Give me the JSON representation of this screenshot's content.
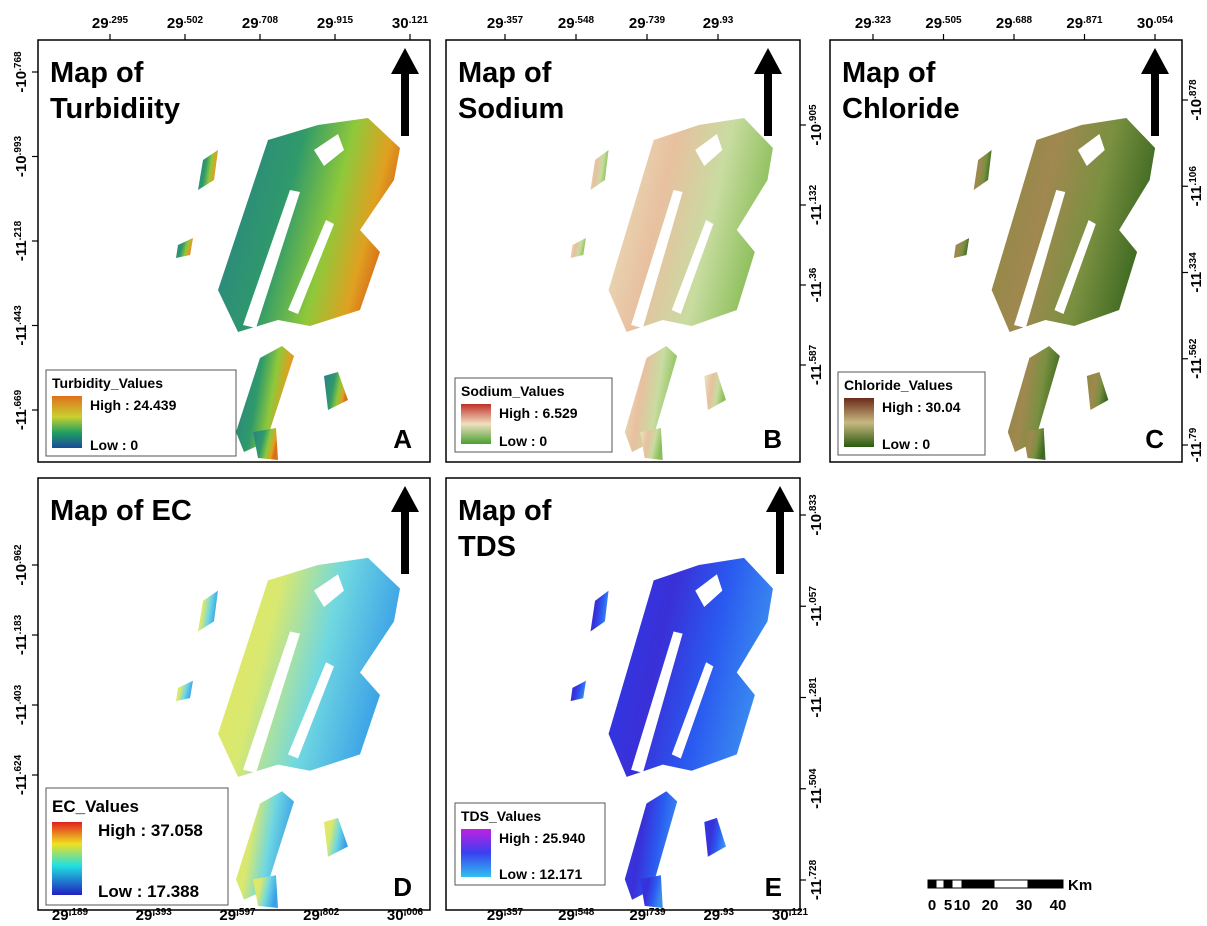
{
  "panels": [
    {
      "title": [
        "Map of",
        "Turbidiity"
      ],
      "letter": "A",
      "legend": {
        "title": "Turbidity_Values",
        "high": "High : 24.439",
        "low": "Low : 0"
      },
      "top_ticks": [
        29.295,
        29.502,
        29.708,
        29.915,
        30.121
      ],
      "left_ticks": [
        -10.768,
        -10.993,
        -11.218,
        -11.443,
        -11.669
      ]
    },
    {
      "title": [
        "Map of",
        "Sodium"
      ],
      "letter": "B",
      "legend": {
        "title": "Sodium_Values",
        "high": "High : 6.529",
        "low": "Low : 0"
      },
      "top_ticks": [
        29.357,
        29.548,
        29.739,
        29.93
      ],
      "right_ticks": [
        -10.905,
        -11.132,
        -11.36,
        -11.587
      ]
    },
    {
      "title": [
        "Map of",
        "Chloride"
      ],
      "letter": "C",
      "legend": {
        "title": "Chloride_Values",
        "high": "High : 30.04",
        "low": "Low : 0"
      },
      "top_ticks": [
        29.323,
        29.505,
        29.688,
        29.871,
        30.054
      ],
      "right_ticks": [
        -10.878,
        -11.106,
        -11.334,
        -11.562,
        -11.79
      ]
    },
    {
      "title": [
        "Map of EC"
      ],
      "letter": "D",
      "legend": {
        "title": "EC_Values",
        "high": "High : 37.058",
        "low": "Low : 17.388"
      },
      "bottom_ticks": [
        29.189,
        29.393,
        29.597,
        29.802,
        30.006
      ],
      "left_ticks": [
        -10.962,
        -11.183,
        -11.403,
        -11.624
      ]
    },
    {
      "title": [
        "Map of",
        "TDS"
      ],
      "letter": "E",
      "legend": {
        "title": "TDS_Values",
        "high": "High : 25.940",
        "low": "Low : 12.171"
      },
      "bottom_ticks": [
        29.357,
        29.548,
        29.739,
        29.93,
        30.121
      ],
      "right_ticks": [
        -10.833,
        -11.057,
        -11.281,
        -11.504,
        -11.728
      ]
    }
  ],
  "scale_bar": {
    "labels": [
      "0",
      "5",
      "10",
      "20",
      "30",
      "40"
    ],
    "unit": "Km"
  }
}
